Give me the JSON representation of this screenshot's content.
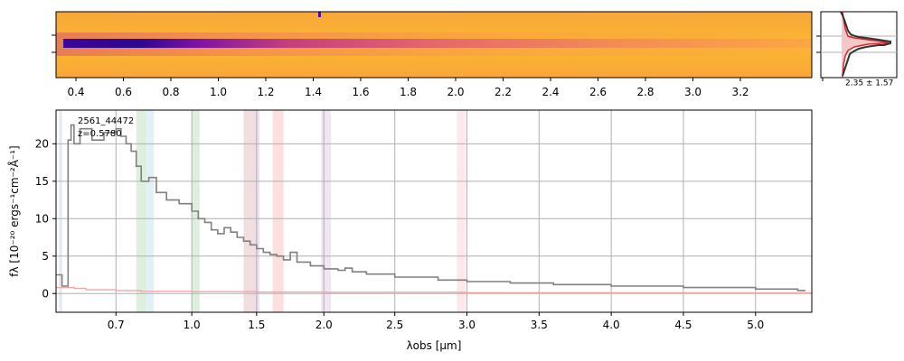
{
  "chart_data": [
    {
      "type": "heatmap",
      "panel": "2d spectrum",
      "colormap": "plasma",
      "x_tick_labels": [
        "0.4",
        "0.6",
        "0.8",
        "1.0",
        "1.2",
        "1.4",
        "1.6",
        "1.8",
        "2.0",
        "2.2",
        "2.4",
        "2.6",
        "2.8",
        "3.0",
        "3.2"
      ],
      "trace": {
        "center_row": 0.5,
        "peak_wavelength_um": 0.72,
        "description_color": "dark blue along center, fading redward"
      },
      "background_color": "#fdb42f"
    },
    {
      "type": "line",
      "panel": "spatial profile",
      "label": "2.35 ± 1.57",
      "colors": {
        "data": "#333333",
        "model": "#d62728",
        "fill": "#f7c6c6"
      }
    },
    {
      "type": "line",
      "panel": "1d spectrum",
      "annotation": {
        "id": "2561_44472",
        "redshift": "z=0.5780"
      },
      "xlabel": "λobs [μm]",
      "ylabel": "fλ [10⁻²⁰ ergs⁻¹cm⁻²Å⁻¹]",
      "x_ticks": [
        "0.7",
        "1.0",
        "1.5",
        "2.0",
        "2.5",
        "3.0",
        "3.5",
        "4.0",
        "4.5",
        "5.0"
      ],
      "y_ticks": [
        "0",
        "5",
        "10",
        "15",
        "20"
      ],
      "ylim": [
        -2.5,
        24.5
      ],
      "xlim_um": [
        0.6,
        5.4
      ],
      "grid": true,
      "series": [
        {
          "role": "flux",
          "color": "#808080",
          "x": [
            0.6,
            0.61,
            0.62,
            0.625,
            0.63,
            0.64,
            0.66,
            0.68,
            0.7,
            0.72,
            0.74,
            0.76,
            0.78,
            0.8,
            0.83,
            0.86,
            0.9,
            0.95,
            1.0,
            1.05,
            1.1,
            1.15,
            1.2,
            1.25,
            1.3,
            1.35,
            1.4,
            1.45,
            1.5,
            1.55,
            1.6,
            1.65,
            1.7,
            1.75,
            1.8,
            1.9,
            2.0,
            2.1,
            2.15,
            2.2,
            2.3,
            2.5,
            2.8,
            3.0,
            3.3,
            3.6,
            4.0,
            4.5,
            5.0,
            5.3,
            5.35
          ],
          "y": [
            2.5,
            1.0,
            20.5,
            22.5,
            20.0,
            22.0,
            20.5,
            21.5,
            22.0,
            21.0,
            20.0,
            19.0,
            17.0,
            15.0,
            15.5,
            13.5,
            12.5,
            12.0,
            11.0,
            10.0,
            9.5,
            8.5,
            8.0,
            8.8,
            8.2,
            7.5,
            7.0,
            6.5,
            6.0,
            5.5,
            5.2,
            5.0,
            4.5,
            5.5,
            4.2,
            3.7,
            3.3,
            3.1,
            3.4,
            2.9,
            2.6,
            2.2,
            1.8,
            1.6,
            1.4,
            1.2,
            1.0,
            0.8,
            0.6,
            0.4,
            0.3
          ]
        },
        {
          "role": "error",
          "color": "#f4a6a6",
          "x": [
            0.6,
            0.63,
            0.65,
            0.7,
            0.8,
            1.0,
            1.5,
            2.0,
            3.0,
            4.0,
            5.0,
            5.4
          ],
          "y": [
            0.8,
            0.7,
            0.5,
            0.4,
            0.3,
            0.25,
            0.2,
            0.18,
            0.12,
            0.1,
            0.08,
            0.08
          ]
        }
      ],
      "bands": [
        {
          "x0": 0.605,
          "x1": 0.61,
          "color": "#b0c4de"
        },
        {
          "x0": 0.78,
          "x1": 0.82,
          "color": "#9ed29e"
        },
        {
          "x0": 0.82,
          "x1": 0.85,
          "color": "#add8e6"
        },
        {
          "x0": 1.0,
          "x1": 1.06,
          "color": "#9ed29e"
        },
        {
          "x0": 1.4,
          "x1": 1.48,
          "color": "#d9a0a0"
        },
        {
          "x0": 1.48,
          "x1": 1.52,
          "color": "#c8a2c8"
        },
        {
          "x0": 1.62,
          "x1": 1.7,
          "color": "#f6a6a6"
        },
        {
          "x0": 1.98,
          "x1": 2.05,
          "color": "#d8b4e2"
        },
        {
          "x0": 2.93,
          "x1": 2.99,
          "color": "#f9c0c8"
        }
      ]
    }
  ]
}
